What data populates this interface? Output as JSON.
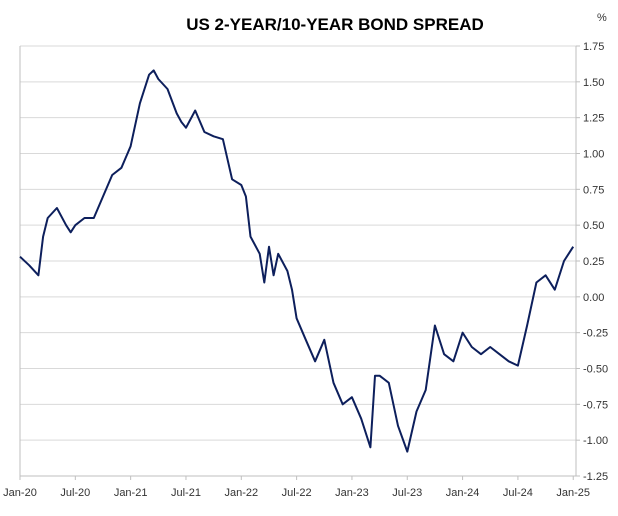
{
  "chart_data": {
    "type": "line",
    "title": "US 2-YEAR/10-YEAR BOND SPREAD",
    "ylabel": "%",
    "xlabel": "",
    "ylim": [
      -1.25,
      1.75
    ],
    "yticks": [
      "1.75",
      "1.50",
      "1.25",
      "1.00",
      "0.75",
      "0.50",
      "0.25",
      "0.00",
      "-0.25",
      "-0.50",
      "-0.75",
      "-1.00",
      "-1.25"
    ],
    "xticks": [
      "Jan-20",
      "Jul-20",
      "Jan-21",
      "Jul-21",
      "Jan-22",
      "Jul-22",
      "Jan-23",
      "Jul-23",
      "Jan-24",
      "Jul-24",
      "Jan-25"
    ],
    "grid": true,
    "y_axis_position": "right",
    "series": [
      {
        "color": "#0d1f5c",
        "x": [
          "2020-01",
          "2020-02",
          "2020-03",
          "2020-03",
          "2020-04",
          "2020-05",
          "2020-06",
          "2020-06",
          "2020-07",
          "2020-08",
          "2020-09",
          "2020-10",
          "2020-11",
          "2020-12",
          "2021-01",
          "2021-02",
          "2021-03",
          "2021-03",
          "2021-04",
          "2021-05",
          "2021-06",
          "2021-06",
          "2021-07",
          "2021-08",
          "2021-09",
          "2021-10",
          "2021-11",
          "2021-12",
          "2022-01",
          "2022-01",
          "2022-02",
          "2022-03",
          "2022-03",
          "2022-04",
          "2022-04",
          "2022-05",
          "2022-06",
          "2022-06",
          "2022-07",
          "2022-08",
          "2022-09",
          "2022-10",
          "2022-11",
          "2022-12",
          "2023-01",
          "2023-02",
          "2023-03",
          "2023-03",
          "2023-04",
          "2023-05",
          "2023-06",
          "2023-07",
          "2023-08",
          "2023-09",
          "2023-10",
          "2023-11",
          "2023-12",
          "2024-01",
          "2024-02",
          "2024-03",
          "2024-04",
          "2024-05",
          "2024-06",
          "2024-07",
          "2024-08",
          "2024-09",
          "2024-10",
          "2024-11",
          "2024-12",
          "2025-01"
        ],
        "y": [
          0.28,
          0.22,
          0.15,
          0.42,
          0.55,
          0.62,
          0.5,
          0.45,
          0.5,
          0.55,
          0.55,
          0.7,
          0.85,
          0.9,
          1.05,
          1.35,
          1.55,
          1.58,
          1.52,
          1.45,
          1.28,
          1.22,
          1.18,
          1.3,
          1.15,
          1.12,
          1.1,
          0.82,
          0.78,
          0.7,
          0.42,
          0.3,
          0.1,
          0.35,
          0.15,
          0.3,
          0.18,
          0.05,
          -0.15,
          -0.3,
          -0.45,
          -0.3,
          -0.6,
          -0.75,
          -0.7,
          -0.85,
          -1.05,
          -0.55,
          -0.55,
          -0.6,
          -0.9,
          -1.08,
          -0.8,
          -0.65,
          -0.2,
          -0.4,
          -0.45,
          -0.25,
          -0.35,
          -0.4,
          -0.35,
          -0.4,
          -0.45,
          -0.48,
          -0.2,
          0.1,
          0.15,
          0.05,
          0.25,
          0.35
        ]
      }
    ]
  }
}
